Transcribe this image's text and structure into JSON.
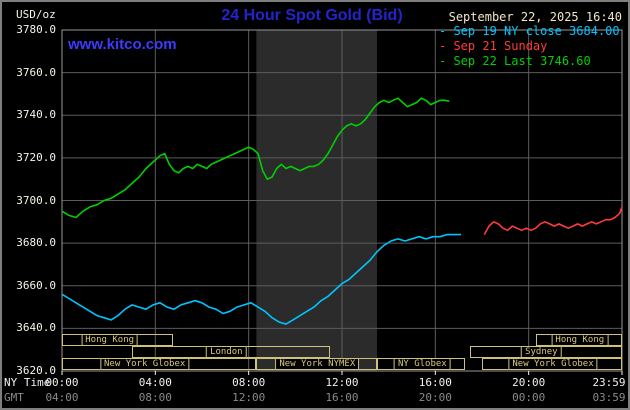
{
  "colors": {
    "background": "#000000",
    "frame_border": "#7f7f7f",
    "plot_border": "#989898",
    "grid": "#5c5c5c",
    "session_band": "#2b2b2b",
    "session_box": "#cfc07a",
    "title_blue": "#2424cf",
    "watermark_blue": "#3b3bff",
    "date_tan": "#f0e6c8",
    "axis_text": "#f5f5ea",
    "gmt_text": "#8a8a8a",
    "cyan": "#00c4ff",
    "red": "#ff3b3b",
    "green": "#00d000"
  },
  "header": {
    "units_label": "USD/oz",
    "title": "24 Hour Spot Gold (Bid)",
    "datetime": "September 22, 2025 16:40",
    "watermark": "www.kitco.com",
    "legend": [
      {
        "marker": "-",
        "label": "Sep 19 NY close 3684.00",
        "color": "#00c4ff"
      },
      {
        "marker": "-",
        "label": "Sep 21 Sunday",
        "color": "#ff3b3b"
      },
      {
        "marker": "-",
        "label": "Sep 22 Last 3746.60",
        "color": "#00d000"
      }
    ]
  },
  "axis": {
    "y_ticks": [
      "3780.0",
      "3760.0",
      "3740.0",
      "3720.0",
      "3700.0",
      "3680.0",
      "3660.0",
      "3640.0",
      "3620.0"
    ],
    "x_tick_hours": [
      0,
      4,
      8,
      12,
      16,
      20,
      24
    ],
    "x_row1_caption": "NY Time",
    "x_row1": [
      "00:00",
      "04:00",
      "08:00",
      "12:00",
      "16:00",
      "20:00",
      "23:59"
    ],
    "x_row2_caption": "GMT",
    "x_row2": [
      "04:00",
      "08:00",
      "12:00",
      "16:00",
      "20:00",
      "00:00",
      "03:59"
    ]
  },
  "sessions": [
    {
      "row": 0,
      "label": "Hong Kong",
      "start": 0,
      "end": 4.75,
      "label_at": 2.0
    },
    {
      "row": 0,
      "label": "Hong Kong",
      "start": 20.3,
      "end": 24,
      "label_at": 22.15
    },
    {
      "row": 1,
      "label": "London",
      "start": 3.0,
      "end": 11.5,
      "label_at": 7.0
    },
    {
      "row": 1,
      "label": "Sydney",
      "start": 17.5,
      "end": 24,
      "label_at": 20.5
    },
    {
      "row": 2,
      "label": "New York Globex",
      "start": 0,
      "end": 8.33,
      "label_at": 3.5
    },
    {
      "row": 2,
      "label": "New York NYMEX",
      "start": 8.33,
      "end": 13.5,
      "label_at": 10.9
    },
    {
      "row": 2,
      "label": "NY Globex",
      "start": 13.5,
      "end": 17.25,
      "label_at": 15.4
    },
    {
      "row": 2,
      "label": "New York Globex",
      "start": 18.0,
      "end": 24,
      "label_at": 21.0
    }
  ],
  "chart_data": {
    "type": "line",
    "title": "24 Hour Spot Gold (Bid)",
    "xlabel": "NY Time (hours, 00:00-23:59)",
    "ylabel": "USD/oz",
    "xlim": [
      0,
      24
    ],
    "ylim": [
      3620,
      3780
    ],
    "y_tick_step": 20,
    "x_tick_step_hours": 4,
    "grid": true,
    "legend_position": "top-right",
    "nymex_band_hours": {
      "from": 8.33,
      "to": 13.5
    },
    "series": [
      {
        "id": "sep19",
        "name": "Sep 19 NY close 3684.00",
        "color": "#00c4ff",
        "close": 3684.0,
        "points": [
          [
            0,
            3656
          ],
          [
            0.3,
            3654
          ],
          [
            0.6,
            3652
          ],
          [
            0.9,
            3650
          ],
          [
            1.2,
            3648
          ],
          [
            1.5,
            3646
          ],
          [
            1.8,
            3645
          ],
          [
            2.1,
            3644
          ],
          [
            2.4,
            3646
          ],
          [
            2.7,
            3649
          ],
          [
            3.0,
            3651
          ],
          [
            3.3,
            3650
          ],
          [
            3.6,
            3649
          ],
          [
            3.9,
            3651
          ],
          [
            4.2,
            3652
          ],
          [
            4.5,
            3650
          ],
          [
            4.8,
            3649
          ],
          [
            5.1,
            3651
          ],
          [
            5.4,
            3652
          ],
          [
            5.7,
            3653
          ],
          [
            6.0,
            3652
          ],
          [
            6.3,
            3650
          ],
          [
            6.6,
            3649
          ],
          [
            6.9,
            3647
          ],
          [
            7.2,
            3648
          ],
          [
            7.5,
            3650
          ],
          [
            7.8,
            3651
          ],
          [
            8.1,
            3652
          ],
          [
            8.4,
            3650
          ],
          [
            8.7,
            3648
          ],
          [
            9.0,
            3645
          ],
          [
            9.3,
            3643
          ],
          [
            9.6,
            3642
          ],
          [
            9.9,
            3644
          ],
          [
            10.2,
            3646
          ],
          [
            10.5,
            3648
          ],
          [
            10.8,
            3650
          ],
          [
            11.1,
            3653
          ],
          [
            11.4,
            3655
          ],
          [
            11.7,
            3658
          ],
          [
            12.0,
            3661
          ],
          [
            12.3,
            3663
          ],
          [
            12.6,
            3666
          ],
          [
            12.9,
            3669
          ],
          [
            13.2,
            3672
          ],
          [
            13.5,
            3676
          ],
          [
            13.8,
            3679
          ],
          [
            14.1,
            3681
          ],
          [
            14.4,
            3682
          ],
          [
            14.7,
            3681
          ],
          [
            15.0,
            3682
          ],
          [
            15.3,
            3683
          ],
          [
            15.6,
            3682
          ],
          [
            15.9,
            3683
          ],
          [
            16.2,
            3683
          ],
          [
            16.5,
            3684
          ],
          [
            16.8,
            3684
          ],
          [
            17.1,
            3684
          ]
        ]
      },
      {
        "id": "sep21",
        "name": "Sep 21 Sunday",
        "color": "#ff3b3b",
        "points": [
          [
            18.1,
            3684
          ],
          [
            18.3,
            3688
          ],
          [
            18.5,
            3690
          ],
          [
            18.7,
            3689
          ],
          [
            18.9,
            3687
          ],
          [
            19.1,
            3686
          ],
          [
            19.3,
            3688
          ],
          [
            19.5,
            3687
          ],
          [
            19.7,
            3686
          ],
          [
            19.9,
            3687
          ],
          [
            20.1,
            3686
          ],
          [
            20.3,
            3687
          ],
          [
            20.5,
            3689
          ],
          [
            20.7,
            3690
          ],
          [
            20.9,
            3689
          ],
          [
            21.1,
            3688
          ],
          [
            21.3,
            3689
          ],
          [
            21.5,
            3688
          ],
          [
            21.7,
            3687
          ],
          [
            21.9,
            3688
          ],
          [
            22.1,
            3689
          ],
          [
            22.3,
            3688
          ],
          [
            22.5,
            3689
          ],
          [
            22.7,
            3690
          ],
          [
            22.9,
            3689
          ],
          [
            23.1,
            3690
          ],
          [
            23.3,
            3691
          ],
          [
            23.5,
            3691
          ],
          [
            23.7,
            3692
          ],
          [
            23.9,
            3694
          ],
          [
            24,
            3697
          ]
        ]
      },
      {
        "id": "sep22",
        "name": "Sep 22 Last 3746.60",
        "color": "#00d000",
        "last": 3746.6,
        "points": [
          [
            0,
            3695
          ],
          [
            0.3,
            3693
          ],
          [
            0.6,
            3692
          ],
          [
            0.9,
            3695
          ],
          [
            1.2,
            3697
          ],
          [
            1.5,
            3698
          ],
          [
            1.8,
            3700
          ],
          [
            2.1,
            3701
          ],
          [
            2.4,
            3703
          ],
          [
            2.7,
            3705
          ],
          [
            3.0,
            3708
          ],
          [
            3.3,
            3711
          ],
          [
            3.6,
            3715
          ],
          [
            3.9,
            3718
          ],
          [
            4.2,
            3721
          ],
          [
            4.4,
            3722
          ],
          [
            4.6,
            3717
          ],
          [
            4.8,
            3714
          ],
          [
            5.0,
            3713
          ],
          [
            5.2,
            3715
          ],
          [
            5.4,
            3716
          ],
          [
            5.6,
            3715
          ],
          [
            5.8,
            3717
          ],
          [
            6.0,
            3716
          ],
          [
            6.2,
            3715
          ],
          [
            6.4,
            3717
          ],
          [
            6.6,
            3718
          ],
          [
            6.8,
            3719
          ],
          [
            7.0,
            3720
          ],
          [
            7.2,
            3721
          ],
          [
            7.4,
            3722
          ],
          [
            7.6,
            3723
          ],
          [
            7.8,
            3724
          ],
          [
            8.0,
            3725
          ],
          [
            8.2,
            3724
          ],
          [
            8.4,
            3722
          ],
          [
            8.6,
            3714
          ],
          [
            8.8,
            3710
          ],
          [
            9.0,
            3711
          ],
          [
            9.2,
            3715
          ],
          [
            9.4,
            3717
          ],
          [
            9.6,
            3715
          ],
          [
            9.8,
            3716
          ],
          [
            10.0,
            3715
          ],
          [
            10.2,
            3714
          ],
          [
            10.4,
            3715
          ],
          [
            10.6,
            3716
          ],
          [
            10.8,
            3716
          ],
          [
            11.0,
            3717
          ],
          [
            11.2,
            3719
          ],
          [
            11.4,
            3722
          ],
          [
            11.6,
            3726
          ],
          [
            11.8,
            3730
          ],
          [
            12.0,
            3733
          ],
          [
            12.2,
            3735
          ],
          [
            12.4,
            3736
          ],
          [
            12.6,
            3735
          ],
          [
            12.8,
            3736
          ],
          [
            13.0,
            3738
          ],
          [
            13.2,
            3741
          ],
          [
            13.4,
            3744
          ],
          [
            13.6,
            3746
          ],
          [
            13.8,
            3747
          ],
          [
            14.0,
            3746
          ],
          [
            14.2,
            3747
          ],
          [
            14.4,
            3748
          ],
          [
            14.6,
            3746
          ],
          [
            14.8,
            3744
          ],
          [
            15.0,
            3745
          ],
          [
            15.2,
            3746
          ],
          [
            15.4,
            3748
          ],
          [
            15.6,
            3747
          ],
          [
            15.8,
            3745
          ],
          [
            16.0,
            3746
          ],
          [
            16.2,
            3747
          ],
          [
            16.4,
            3747
          ],
          [
            16.6,
            3746.6
          ]
        ]
      }
    ]
  }
}
